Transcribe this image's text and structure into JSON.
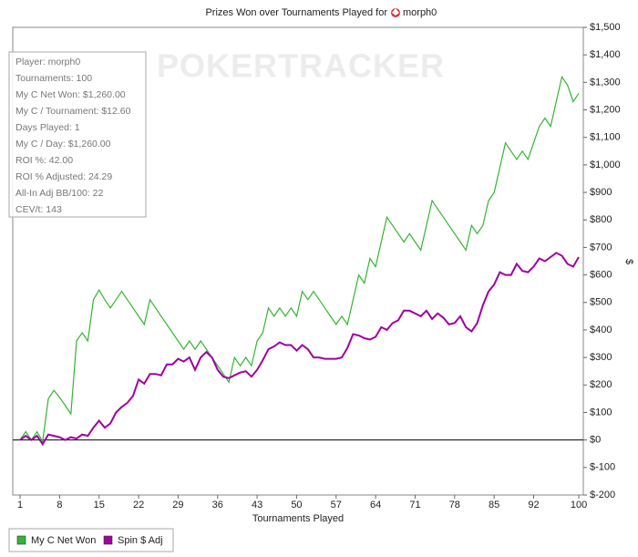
{
  "chart_data": {
    "type": "line",
    "title": "Prizes Won over Tournaments Played for",
    "title_player": "morph0",
    "watermark": "POKERTRACKER",
    "x_label": "Tournaments Played",
    "y_label": "$",
    "notes": [
      "Player: morph0",
      "Tournaments: 100",
      "My C Net Won: $1,260.00",
      "My C / Tournament: $12.60",
      "Days Played: 1",
      "My C / Day: $1,260.00",
      "ROI %: 42.00",
      "ROI % Adjusted: 24.29",
      "All-In Adj BB/100: 22",
      "CEV/t: 143"
    ],
    "x": [
      1,
      2,
      3,
      4,
      5,
      6,
      7,
      8,
      9,
      10,
      11,
      12,
      13,
      14,
      15,
      16,
      17,
      18,
      19,
      20,
      21,
      22,
      23,
      24,
      25,
      26,
      27,
      28,
      29,
      30,
      31,
      32,
      33,
      34,
      35,
      36,
      37,
      38,
      39,
      40,
      41,
      42,
      43,
      44,
      45,
      46,
      47,
      48,
      49,
      50,
      51,
      52,
      53,
      54,
      55,
      56,
      57,
      58,
      59,
      60,
      61,
      62,
      63,
      64,
      65,
      66,
      67,
      68,
      69,
      70,
      71,
      72,
      73,
      74,
      75,
      76,
      77,
      78,
      79,
      80,
      81,
      82,
      83,
      84,
      85,
      86,
      87,
      88,
      89,
      90,
      91,
      92,
      93,
      94,
      95,
      96,
      97,
      98,
      99,
      100
    ],
    "series": [
      {
        "name": "My C Net Won",
        "color": "#33b533",
        "values": [
          0,
          30,
          0,
          30,
          -5,
          150,
          180,
          155,
          125,
          95,
          360,
          390,
          360,
          510,
          545,
          510,
          480,
          510,
          540,
          510,
          480,
          450,
          420,
          510,
          480,
          450,
          420,
          390,
          360,
          330,
          360,
          330,
          360,
          330,
          300,
          270,
          240,
          210,
          300,
          270,
          300,
          270,
          360,
          390,
          480,
          450,
          480,
          450,
          480,
          450,
          540,
          510,
          540,
          510,
          480,
          450,
          420,
          450,
          420,
          510,
          600,
          570,
          660,
          630,
          720,
          810,
          780,
          750,
          720,
          750,
          720,
          690,
          780,
          870,
          840,
          810,
          780,
          750,
          720,
          690,
          780,
          750,
          780,
          870,
          900,
          990,
          1080,
          1050,
          1020,
          1050,
          1020,
          1080,
          1140,
          1170,
          1140,
          1230,
          1320,
          1290,
          1230,
          1260
        ]
      },
      {
        "name": "Spin $ Adj",
        "color": "#a000a0",
        "values": [
          0,
          15,
          0,
          15,
          -15,
          20,
          15,
          10,
          0,
          10,
          5,
          20,
          15,
          45,
          70,
          45,
          60,
          100,
          120,
          135,
          160,
          220,
          205,
          240,
          240,
          235,
          275,
          275,
          295,
          285,
          300,
          255,
          300,
          320,
          300,
          255,
          230,
          225,
          235,
          245,
          250,
          230,
          255,
          290,
          330,
          340,
          355,
          345,
          345,
          325,
          345,
          330,
          300,
          300,
          295,
          295,
          295,
          300,
          335,
          385,
          380,
          370,
          365,
          375,
          410,
          400,
          425,
          435,
          470,
          470,
          460,
          450,
          470,
          440,
          460,
          445,
          420,
          425,
          450,
          410,
          395,
          425,
          490,
          540,
          565,
          610,
          600,
          600,
          640,
          615,
          610,
          630,
          660,
          650,
          665,
          680,
          670,
          640,
          630,
          665
        ]
      }
    ],
    "xlim": [
      -0.3,
      100.8
    ],
    "xticks": [
      1,
      8,
      15,
      22,
      29,
      36,
      43,
      50,
      57,
      64,
      71,
      78,
      85,
      92,
      100
    ],
    "ylim": [
      -200,
      1500
    ],
    "yticks": [
      {
        "value": -200,
        "label": "$-200"
      },
      {
        "value": -100,
        "label": "$-100"
      },
      {
        "value": 0,
        "label": "$0"
      },
      {
        "value": 100,
        "label": "$100"
      },
      {
        "value": 200,
        "label": "$200"
      },
      {
        "value": 300,
        "label": "$300"
      },
      {
        "value": 400,
        "label": "$400"
      },
      {
        "value": 500,
        "label": "$500"
      },
      {
        "value": 600,
        "label": "$600"
      },
      {
        "value": 700,
        "label": "$700"
      },
      {
        "value": 800,
        "label": "$800"
      },
      {
        "value": 900,
        "label": "$900"
      },
      {
        "value": 1000,
        "label": "$1,000"
      },
      {
        "value": 1100,
        "label": "$1,100"
      },
      {
        "value": 1200,
        "label": "$1,200"
      },
      {
        "value": 1300,
        "label": "$1,300"
      },
      {
        "value": 1400,
        "label": "$1,400"
      },
      {
        "value": 1500,
        "label": "$1,500"
      }
    ],
    "y_axis_side": "right",
    "grid": false
  }
}
